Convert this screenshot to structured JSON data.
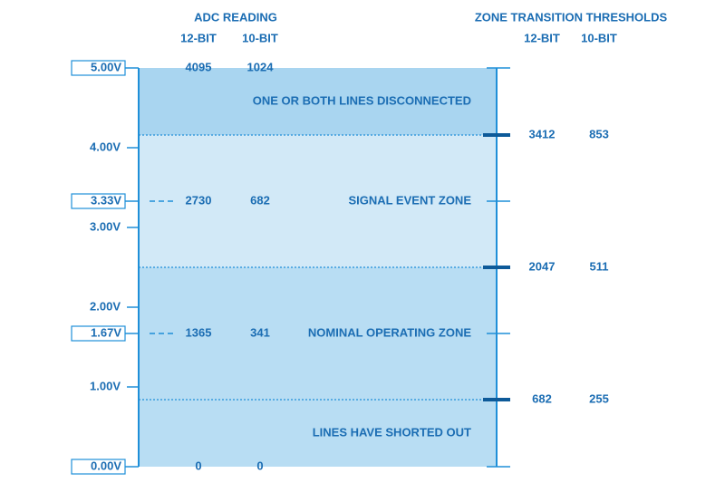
{
  "adc_reading": {
    "title": "ADC READING",
    "columns": [
      "12-BIT",
      "10-BIT"
    ],
    "rows": [
      [
        4095,
        1024
      ],
      [
        2730,
        682
      ],
      [
        1365,
        341
      ],
      [
        0,
        0
      ]
    ]
  },
  "voltages": [
    "5.00V",
    "4.00V",
    "3.33V",
    "3.00V",
    "2.00V",
    "1.67V",
    "1.00V",
    "0.00V"
  ],
  "zones": [
    "ONE OR BOTH LINES DISCONNECTED",
    "SIGNAL EVENT ZONE",
    "NOMINAL OPERATING ZONE",
    "LINES HAVE SHORTED OUT"
  ],
  "thresholds": {
    "title": "ZONE TRANSITION THRESHOLDS",
    "columns": [
      "12-BIT",
      "10-BIT"
    ],
    "rows": [
      [
        3412,
        853
      ],
      [
        2047,
        511
      ],
      [
        682,
        255
      ]
    ]
  }
}
